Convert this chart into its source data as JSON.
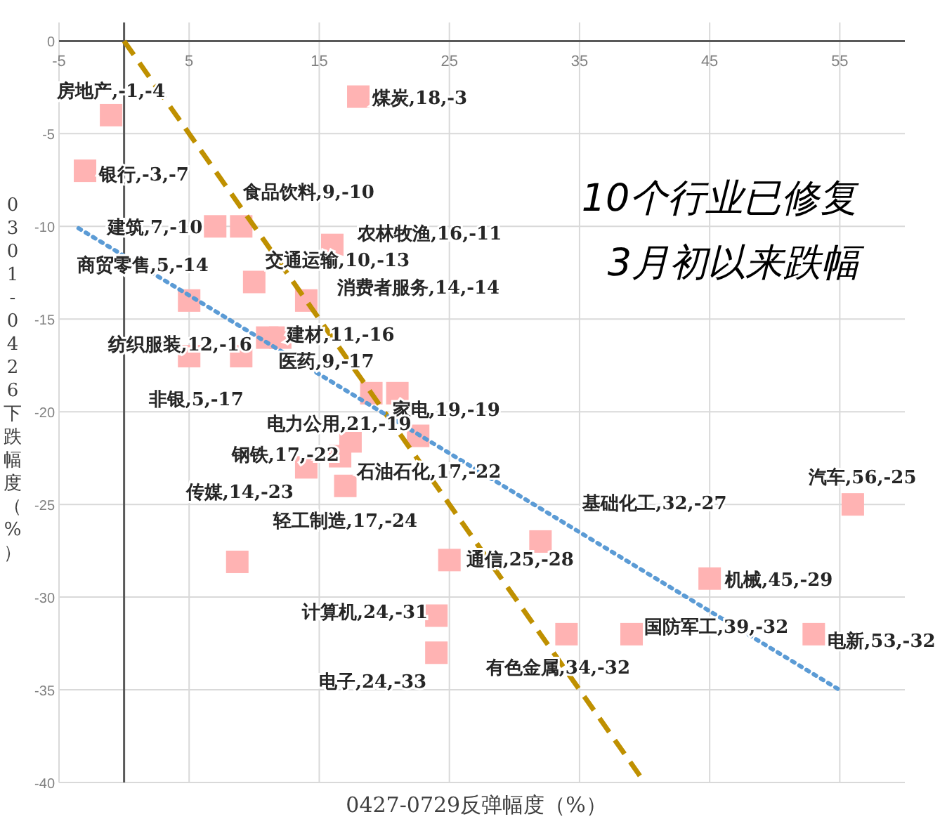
{
  "chart_data": {
    "type": "scatter",
    "xlabel": "0427-0729反弹幅度（%）",
    "ylabel": "0301-0426下跌幅度（%）",
    "annotations": [
      "10个行业已修复",
      "3月初以来跌幅"
    ],
    "xlim": [
      -5,
      60
    ],
    "ylim": [
      -40,
      1
    ],
    "xticks": [
      -5,
      5,
      15,
      25,
      35,
      45,
      55
    ],
    "yticks": [
      0,
      -5,
      -10,
      -15,
      -20,
      -25,
      -30,
      -35,
      -40
    ],
    "grid": true,
    "marker": "square",
    "series": [
      {
        "type": "scatter",
        "color": "#ffb3b3",
        "x": [
          -1,
          -3,
          18,
          9,
          7,
          16,
          10,
          5,
          14,
          11,
          12,
          9,
          5,
          19,
          21,
          17.4,
          16.6,
          14,
          17,
          25,
          32,
          24,
          24,
          34,
          39,
          45,
          53,
          56,
          22.6,
          8.7
        ],
        "values": [
          -4,
          -7,
          -3,
          -10,
          -10,
          -11,
          -13,
          -14,
          -14,
          -16,
          -16,
          -17,
          -17,
          -19,
          -19,
          -21.6,
          -22.4,
          -23,
          -24,
          -28,
          -27,
          -31,
          -33,
          -32,
          -32,
          -29,
          -32,
          -25,
          -21.3,
          -28.1
        ],
        "value_labels": [
          "房地产,-1,-4",
          "银行,-3,-7",
          "煤炭,18,-3",
          "食品饮料,9,-10",
          "建筑,7,-10",
          "农林牧渔,16,-11",
          "交通运输,10,-13",
          "商贸零售,5,-14",
          "消费者服务,14,-14",
          "建材,11,-16",
          "纺织服装,12,-16",
          "医药,9,-17",
          "非银,5,-17",
          "家电,19,-19",
          "电力公用,21,-19",
          "钢铁,17,-22",
          "石油石化,17,-22",
          "传媒,14,-23",
          "轻工制造,17,-24",
          "通信,25,-28",
          "基础化工,32,-27",
          "计算机,24,-31",
          "电子,24,-33",
          "有色金属,34,-32",
          "国防军工,39,-32",
          "机械,45,-29",
          "电新,53,-32",
          "汽车,56,-25",
          null,
          null
        ]
      },
      {
        "type": "line",
        "color": "#bf9000",
        "line_style": "dashed",
        "marker": "none",
        "x": [
          0,
          40
        ],
        "values": [
          0,
          -40
        ]
      },
      {
        "type": "line",
        "color": "#5b9bd5",
        "line_style": "dotted",
        "marker": "none",
        "x": [
          -3.5,
          55.2
        ],
        "values": [
          -10.1,
          -35.1
        ]
      }
    ]
  }
}
